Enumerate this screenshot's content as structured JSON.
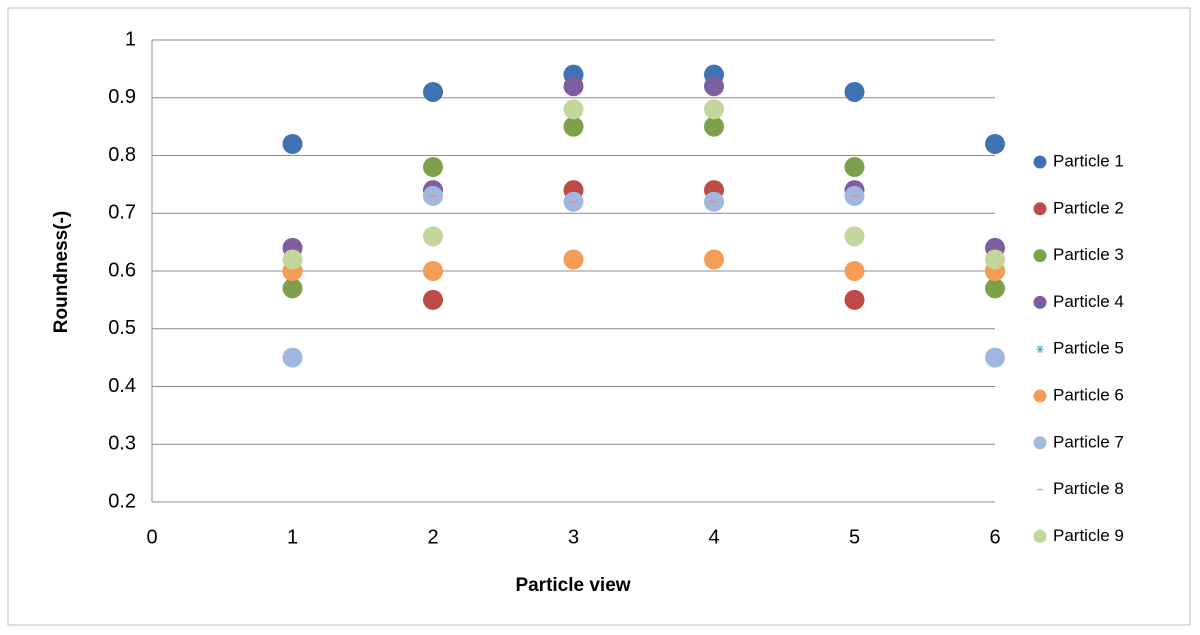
{
  "chart_data": {
    "type": "scatter",
    "x_label": "Particle  view",
    "y_label": "Roundness(-)",
    "x": [
      1,
      2,
      3,
      4,
      5,
      6
    ],
    "xlim": [
      0,
      6
    ],
    "xticks": [
      0,
      1,
      2,
      3,
      4,
      5,
      6
    ],
    "ylim": [
      0.2,
      1
    ],
    "yticks": [
      0.2,
      0.3,
      0.4,
      0.5,
      0.6,
      0.7,
      0.8,
      0.9,
      1
    ],
    "grid": true,
    "legend": "right",
    "series": [
      {
        "name": "Particle 1",
        "color": "#3f72b5",
        "marker": "circle",
        "values": [
          0.82,
          0.91,
          0.94,
          0.94,
          0.91,
          0.82
        ]
      },
      {
        "name": "Particle 2",
        "color": "#be4b48",
        "marker": "circle",
        "values": [
          0.6,
          0.55,
          0.74,
          0.74,
          0.55,
          0.6
        ]
      },
      {
        "name": "Particle 3",
        "color": "#7ea04d",
        "marker": "circle",
        "values": [
          0.57,
          0.78,
          0.85,
          0.85,
          0.78,
          0.57
        ]
      },
      {
        "name": "Particle 4",
        "color": "#7d5fa0",
        "marker": "circle",
        "values": [
          0.64,
          0.74,
          0.92,
          0.92,
          0.74,
          0.64
        ]
      },
      {
        "name": "Particle 5",
        "color": "#4bacc6",
        "marker": "star",
        "values": [
          0.6,
          0.6,
          0.62,
          0.62,
          0.6,
          0.6
        ]
      },
      {
        "name": "Particle 6",
        "color": "#f59d56",
        "marker": "circle",
        "values": [
          0.6,
          0.6,
          0.62,
          0.62,
          0.6,
          0.6
        ]
      },
      {
        "name": "Particle 7",
        "color": "#a0b8e0",
        "marker": "circle",
        "values": [
          0.45,
          0.73,
          0.72,
          0.72,
          0.73,
          0.45
        ]
      },
      {
        "name": "Particle 8",
        "color": "#d99694",
        "marker": "dash",
        "values": [
          0.62,
          0.73,
          0.72,
          0.72,
          0.73,
          0.62
        ]
      },
      {
        "name": "Particle 9",
        "color": "#c3d69b",
        "marker": "circle",
        "values": [
          0.62,
          0.66,
          0.88,
          0.88,
          0.66,
          0.62
        ]
      }
    ]
  }
}
